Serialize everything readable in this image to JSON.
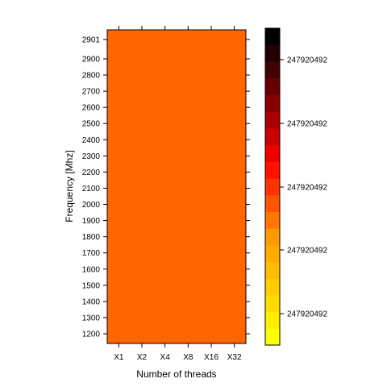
{
  "chart_data": {
    "type": "heatmap",
    "xlabel": "Number of threads",
    "ylabel": "Frequency [Mhz]",
    "x_categories": [
      "X1",
      "X2",
      "X4",
      "X8",
      "X16",
      "X32"
    ],
    "y_ticks": [
      "1200",
      "1300",
      "1400",
      "1500",
      "1600",
      "1700",
      "1800",
      "1900",
      "2000",
      "2100",
      "2200",
      "2300",
      "2400",
      "2500",
      "2600",
      "2700",
      "2800",
      "2900",
      "2901"
    ],
    "y_values": [
      1200,
      1300,
      1400,
      1500,
      1600,
      1700,
      1800,
      1900,
      2000,
      2100,
      2200,
      2300,
      2400,
      2500,
      2600,
      2700,
      2800,
      2900,
      2901
    ],
    "cell_color": "#ff6600",
    "colorkey": {
      "tick_labels": [
        "247920492",
        "247920492",
        "247920492",
        "247920492",
        "247920492"
      ],
      "colors": [
        "#ffff00",
        "#ffee00",
        "#ffdd00",
        "#ffcc00",
        "#ffbb00",
        "#ffaa00",
        "#ff9900",
        "#ff7700",
        "#ff5500",
        "#ff3300",
        "#ff1100",
        "#ee0000",
        "#cc0000",
        "#aa0000",
        "#880000",
        "#660000",
        "#440000",
        "#220000",
        "#000000"
      ]
    }
  }
}
